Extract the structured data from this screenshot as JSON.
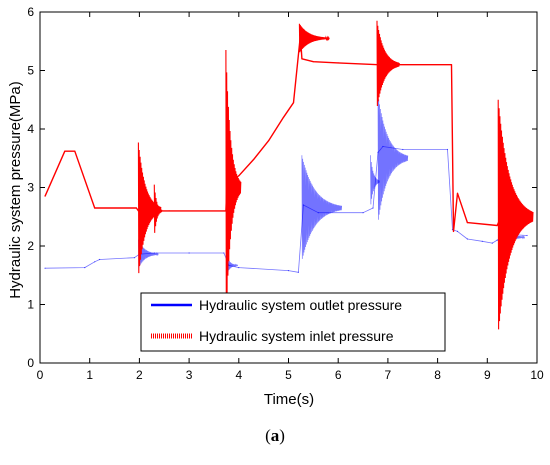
{
  "caption": {
    "open": "(",
    "letter": "a",
    "close": ")"
  },
  "chart_data": {
    "type": "line",
    "title": "",
    "xlabel": "Time(s)",
    "ylabel": "Hydraulic system pressure(MPa)",
    "xlim": [
      0,
      10
    ],
    "ylim": [
      0,
      6
    ],
    "xticks": [
      "0",
      "1",
      "2",
      "3",
      "4",
      "5",
      "6",
      "7",
      "8",
      "9",
      "10"
    ],
    "yticks": [
      "0",
      "1",
      "2",
      "3",
      "4",
      "5",
      "6"
    ],
    "grid": false,
    "legend_position": "bottom-center",
    "series": [
      {
        "name": "Hydraulic system outlet pressure",
        "color": "#0000ff",
        "x": [
          0.1,
          0.9,
          1.1,
          1.2,
          1.9,
          2.0,
          2.3,
          3.0,
          3.7,
          3.8,
          4.0,
          5.0,
          5.2,
          5.3,
          5.6,
          6.5,
          6.7,
          6.8,
          6.9,
          7.3,
          8.2,
          8.3,
          8.4,
          8.6,
          8.9,
          9.1,
          9.2,
          9.4,
          9.8
        ],
        "y": [
          1.62,
          1.63,
          1.73,
          1.77,
          1.8,
          1.86,
          1.88,
          1.88,
          1.88,
          1.67,
          1.63,
          1.58,
          1.55,
          2.7,
          2.57,
          2.57,
          2.65,
          3.6,
          3.7,
          3.65,
          3.65,
          2.28,
          2.25,
          2.12,
          2.08,
          2.05,
          2.1,
          2.2,
          2.18
        ],
        "oscillations": [
          {
            "t": 1.98,
            "amp": 0.25,
            "len": 0.4,
            "center": 1.86
          },
          {
            "t": 3.78,
            "amp": 0.12,
            "len": 0.2,
            "center": 1.67
          },
          {
            "t": 5.27,
            "amp": 0.9,
            "len": 0.8,
            "center": 2.65
          },
          {
            "t": 6.65,
            "amp": 0.45,
            "len": 0.18,
            "center": 3.1
          },
          {
            "t": 6.8,
            "amp": 1.1,
            "len": 0.6,
            "center": 3.5
          },
          {
            "t": 9.25,
            "amp": 0.25,
            "len": 0.5,
            "center": 2.15
          }
        ]
      },
      {
        "name": "Hydraulic system inlet pressure",
        "color": "#ff0000",
        "x": [
          0.1,
          0.5,
          0.7,
          1.1,
          1.94,
          1.98,
          2.0,
          2.6,
          3.74,
          3.76,
          3.8,
          4.0,
          4.3,
          4.6,
          4.9,
          5.1,
          5.24,
          5.27,
          5.5,
          6.0,
          6.8,
          7.0,
          8.28,
          8.32,
          8.4,
          8.6,
          9.2,
          9.25,
          9.8
        ],
        "y": [
          2.85,
          3.62,
          3.62,
          2.65,
          2.65,
          2.6,
          2.6,
          2.6,
          2.6,
          3.05,
          3.1,
          3.2,
          3.48,
          3.8,
          4.2,
          4.45,
          5.6,
          5.2,
          5.15,
          5.13,
          5.1,
          5.1,
          5.1,
          2.25,
          2.9,
          2.4,
          2.35,
          2.45,
          2.42
        ],
        "oscillations": [
          {
            "t": 1.98,
            "amp": 1.15,
            "len": 0.45,
            "center": 2.62
          },
          {
            "t": 2.3,
            "amp": 0.45,
            "len": 0.15,
            "center": 2.6
          },
          {
            "t": 3.74,
            "amp": 2.35,
            "len": 0.3,
            "center": 3.0
          },
          {
            "t": 5.22,
            "amp": 0.25,
            "len": 0.6,
            "center": 5.55
          },
          {
            "t": 6.78,
            "amp": 0.75,
            "len": 0.45,
            "center": 5.1
          },
          {
            "t": 9.22,
            "amp": 2.0,
            "len": 0.7,
            "center": 2.5
          }
        ]
      }
    ]
  }
}
